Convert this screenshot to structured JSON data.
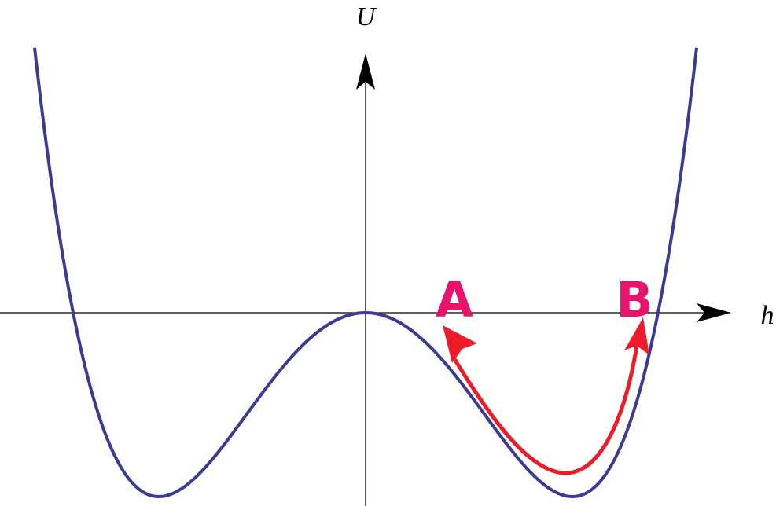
{
  "axis_labels": {
    "y": "U",
    "x": "h"
  },
  "points": {
    "a": "A",
    "b": "B"
  }
}
